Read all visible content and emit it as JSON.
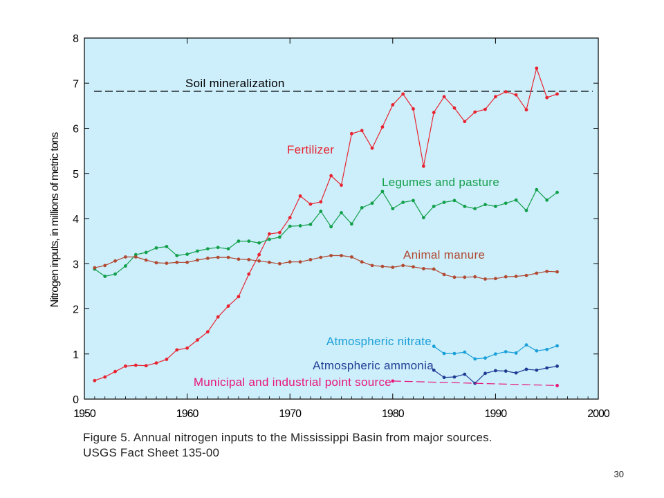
{
  "caption": {
    "line1": "Figure 5. Annual nitrogen inputs to the Mississippi Basin from major sources.",
    "line2": "USGS Fact Sheet 135-00"
  },
  "page_number": "30",
  "colors": {
    "plot_background": "#cdeefb",
    "axis": "#000000",
    "soil": "#000000",
    "fertilizer": "#e8232f",
    "legumes": "#12a04a",
    "manure": "#b04a32",
    "nitrate": "#1aa0d8",
    "ammonia": "#1e3c94",
    "municipal": "#e8157a"
  },
  "chart_data": {
    "type": "line",
    "ylabel": "Nitrogen inputs, in millions of metric tons",
    "xlabel": "",
    "xlim": [
      1950,
      2000
    ],
    "ylim": [
      0,
      8
    ],
    "x_ticks": [
      "1950",
      "1960",
      "1970",
      "1980",
      "1990",
      "2000"
    ],
    "y_ticks": [
      "0",
      "1",
      "2",
      "3",
      "4",
      "5",
      "6",
      "7",
      "8"
    ],
    "grid": false,
    "reference_lines": [
      {
        "name": "Soil mineralization",
        "y": 6.82,
        "style": "dashed"
      }
    ],
    "series": [
      {
        "name": "Fertilizer",
        "color_key": "fertilizer",
        "x": [
          1951,
          1952,
          1953,
          1954,
          1955,
          1956,
          1957,
          1958,
          1959,
          1960,
          1961,
          1962,
          1963,
          1964,
          1965,
          1966,
          1967,
          1968,
          1969,
          1970,
          1971,
          1972,
          1973,
          1974,
          1975,
          1976,
          1977,
          1978,
          1979,
          1980,
          1981,
          1982,
          1983,
          1984,
          1985,
          1986,
          1987,
          1988,
          1989,
          1990,
          1991,
          1992,
          1993,
          1994,
          1995,
          1996
        ],
        "values": [
          0.41,
          0.49,
          0.61,
          0.73,
          0.75,
          0.74,
          0.8,
          0.88,
          1.09,
          1.13,
          1.31,
          1.49,
          1.82,
          2.06,
          2.27,
          2.77,
          3.2,
          3.66,
          3.69,
          4.02,
          4.5,
          4.32,
          4.37,
          4.95,
          4.74,
          5.88,
          5.95,
          5.56,
          6.03,
          6.52,
          6.76,
          6.43,
          5.16,
          6.35,
          6.7,
          6.45,
          6.15,
          6.36,
          6.42,
          6.7,
          6.81,
          6.74,
          6.41,
          7.33,
          6.68,
          6.76
        ]
      },
      {
        "name": "Legumes and pasture",
        "color_key": "legumes",
        "x": [
          1951,
          1952,
          1953,
          1954,
          1955,
          1956,
          1957,
          1958,
          1959,
          1960,
          1961,
          1962,
          1963,
          1964,
          1965,
          1966,
          1967,
          1968,
          1969,
          1970,
          1971,
          1972,
          1973,
          1974,
          1975,
          1976,
          1977,
          1978,
          1979,
          1980,
          1981,
          1982,
          1983,
          1984,
          1985,
          1986,
          1987,
          1988,
          1989,
          1990,
          1991,
          1992,
          1993,
          1994,
          1995,
          1996
        ],
        "values": [
          2.88,
          2.72,
          2.77,
          2.95,
          3.2,
          3.25,
          3.35,
          3.38,
          3.18,
          3.21,
          3.28,
          3.33,
          3.36,
          3.33,
          3.5,
          3.5,
          3.46,
          3.54,
          3.59,
          3.83,
          3.84,
          3.87,
          4.16,
          3.82,
          4.13,
          3.88,
          4.24,
          4.34,
          4.6,
          4.22,
          4.36,
          4.4,
          4.02,
          4.27,
          4.36,
          4.4,
          4.27,
          4.22,
          4.31,
          4.27,
          4.34,
          4.41,
          4.18,
          4.64,
          4.41,
          4.58
        ]
      },
      {
        "name": "Animal manure",
        "color_key": "manure",
        "x": [
          1951,
          1952,
          1953,
          1954,
          1955,
          1956,
          1957,
          1958,
          1959,
          1960,
          1961,
          1962,
          1963,
          1964,
          1965,
          1966,
          1967,
          1968,
          1969,
          1970,
          1971,
          1972,
          1973,
          1974,
          1975,
          1976,
          1977,
          1978,
          1979,
          1980,
          1981,
          1982,
          1983,
          1984,
          1985,
          1986,
          1987,
          1988,
          1989,
          1990,
          1991,
          1992,
          1993,
          1994,
          1995,
          1996
        ],
        "values": [
          2.91,
          2.96,
          3.06,
          3.15,
          3.15,
          3.08,
          3.02,
          3.01,
          3.03,
          3.03,
          3.08,
          3.12,
          3.14,
          3.14,
          3.1,
          3.09,
          3.06,
          3.03,
          3.0,
          3.04,
          3.04,
          3.09,
          3.14,
          3.18,
          3.18,
          3.15,
          3.04,
          2.96,
          2.94,
          2.92,
          2.96,
          2.93,
          2.89,
          2.88,
          2.76,
          2.7,
          2.7,
          2.71,
          2.66,
          2.67,
          2.71,
          2.72,
          2.74,
          2.79,
          2.83,
          2.82
        ]
      },
      {
        "name": "Atmospheric nitrate",
        "color_key": "nitrate",
        "x": [
          1984,
          1985,
          1986,
          1987,
          1988,
          1989,
          1990,
          1991,
          1992,
          1993,
          1994,
          1995,
          1996
        ],
        "values": [
          1.17,
          1.01,
          1.01,
          1.04,
          0.89,
          0.91,
          1.0,
          1.05,
          1.02,
          1.2,
          1.07,
          1.1,
          1.18
        ]
      },
      {
        "name": "Atmospheric ammonia",
        "color_key": "ammonia",
        "x": [
          1984,
          1985,
          1986,
          1987,
          1988,
          1989,
          1990,
          1991,
          1992,
          1993,
          1994,
          1995,
          1996
        ],
        "values": [
          0.64,
          0.48,
          0.49,
          0.55,
          0.35,
          0.57,
          0.63,
          0.62,
          0.58,
          0.66,
          0.64,
          0.69,
          0.73
        ]
      },
      {
        "name": "Municipal and industrial point source",
        "color_key": "municipal",
        "style": "dashed",
        "x": [
          1980,
          1996
        ],
        "values": [
          0.4,
          0.3
        ]
      }
    ]
  }
}
